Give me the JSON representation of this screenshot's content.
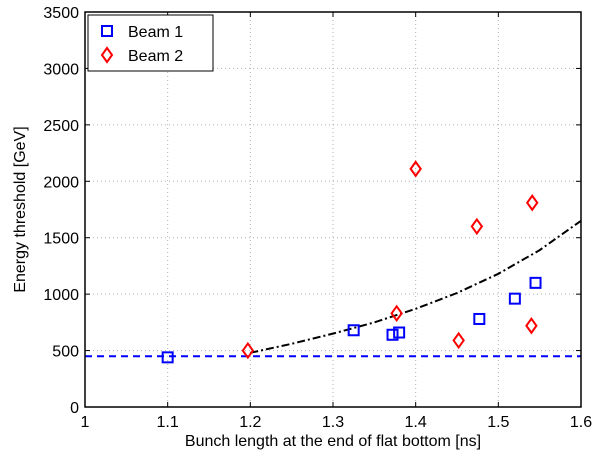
{
  "chart_data": {
    "type": "scatter",
    "title": "",
    "xlabel": "Bunch length at the end of flat bottom [ns]",
    "ylabel": "Energy threshold [GeV]",
    "xlim": [
      1,
      1.6
    ],
    "ylim": [
      0,
      3500
    ],
    "xticks": [
      1,
      1.1,
      1.2,
      1.3,
      1.4,
      1.5,
      1.6
    ],
    "xtick_labels": [
      "1",
      "1.1",
      "1.2",
      "1.3",
      "1.4",
      "1.5",
      "1.6"
    ],
    "yticks": [
      0,
      500,
      1000,
      1500,
      2000,
      2500,
      3000,
      3500
    ],
    "ytick_labels": [
      "0",
      "500",
      "1000",
      "1500",
      "2000",
      "2500",
      "3000",
      "3500"
    ],
    "grid": true,
    "legend_position": "top-left",
    "series": [
      {
        "name": "Beam 1",
        "marker": "square",
        "color": "#0000ff",
        "points": [
          {
            "x": 1.1,
            "y": 440
          },
          {
            "x": 1.325,
            "y": 680
          },
          {
            "x": 1.372,
            "y": 640
          },
          {
            "x": 1.38,
            "y": 660
          },
          {
            "x": 1.477,
            "y": 780
          },
          {
            "x": 1.52,
            "y": 960
          },
          {
            "x": 1.545,
            "y": 1100
          }
        ]
      },
      {
        "name": "Beam 2",
        "marker": "diamond",
        "color": "#ff0000",
        "points": [
          {
            "x": 1.197,
            "y": 500
          },
          {
            "x": 1.377,
            "y": 830
          },
          {
            "x": 1.4,
            "y": 2110
          },
          {
            "x": 1.452,
            "y": 590
          },
          {
            "x": 1.474,
            "y": 1600
          },
          {
            "x": 1.54,
            "y": 720
          },
          {
            "x": 1.541,
            "y": 1810
          }
        ]
      }
    ],
    "reference_lines": [
      {
        "kind": "horizontal",
        "y": 450,
        "color": "#0000ff",
        "style": "dashed"
      },
      {
        "kind": "curve",
        "color": "#000000",
        "style": "dash-dot",
        "points": [
          {
            "x": 1.2,
            "y": 480
          },
          {
            "x": 1.25,
            "y": 560
          },
          {
            "x": 1.3,
            "y": 650
          },
          {
            "x": 1.35,
            "y": 750
          },
          {
            "x": 1.4,
            "y": 870
          },
          {
            "x": 1.45,
            "y": 1010
          },
          {
            "x": 1.5,
            "y": 1180
          },
          {
            "x": 1.55,
            "y": 1390
          },
          {
            "x": 1.6,
            "y": 1650
          }
        ]
      }
    ]
  }
}
